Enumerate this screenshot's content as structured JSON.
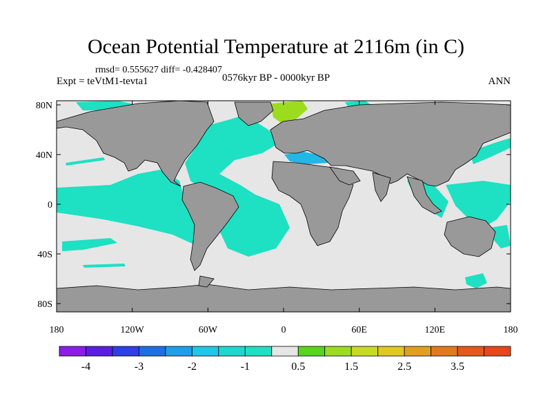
{
  "title": "Ocean Potential Temperature at 2116m (in C)",
  "stats": "rmsd= 0.555627 diff= -0.428407",
  "experiment": "Expt = teVtM1-tevta1",
  "period": "0576kyr BP - 0000kyr BP",
  "season": "ANN",
  "map": {
    "lon_ticks": [
      "180",
      "120W",
      "60W",
      "0",
      "60E",
      "120E",
      "180"
    ],
    "lat_ticks": [
      "80N",
      "40N",
      "0",
      "40S",
      "80S"
    ],
    "colors": {
      "land": "#999999",
      "ocean_neutral": "#e6e6e6",
      "cool_anomaly": "#1ee0c2",
      "mid_cool": "#22b8e6",
      "warm_anomaly": "#9bdd1e",
      "hot_anomaly": "#e8461c"
    }
  },
  "colorbar": {
    "colors": [
      "#8a1ee8",
      "#5a1ee6",
      "#2e3ee8",
      "#1e6ee6",
      "#1e9ee6",
      "#1ec8e6",
      "#1ed8d0",
      "#1ee0c2",
      "#e6e6e6",
      "#5ad41e",
      "#9bdd1e",
      "#c8dc1e",
      "#e0c81e",
      "#e0a01e",
      "#e07a1e",
      "#e6561e",
      "#e8461c"
    ],
    "labels": [
      "-4",
      "-3",
      "-2",
      "-1",
      "0.5",
      "1.5",
      "2.5",
      "3.5"
    ]
  }
}
